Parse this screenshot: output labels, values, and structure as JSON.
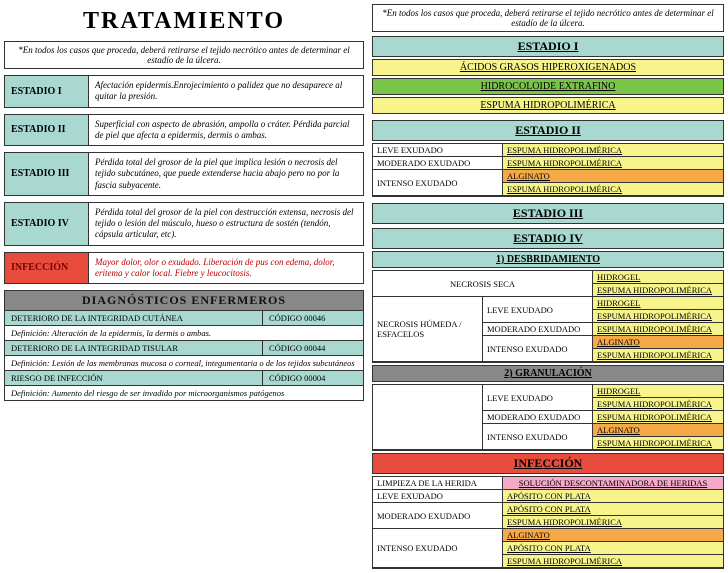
{
  "left": {
    "title": "TRATAMIENTO",
    "note": "*En todos los casos que proceda, deberá retirarse el tejido necrótico antes de determinar el estadío de la úlcera.",
    "stages": [
      {
        "label": "ESTADIO I",
        "desc": "Afectación epidermis.Enrojecimiento o palidez que no desaparece al quitar la presión.",
        "red": false
      },
      {
        "label": "ESTADIO II",
        "desc": "Superficial con aspecto de abrasión, ampolla o cráter. Pérdida parcial de piel que afecta a epidermis, dermis o ambas.",
        "red": false
      },
      {
        "label": "ESTADIO III",
        "desc": "Pérdida total del grosor de la piel que implica lesión o necrosis del tejido subcutáneo, que puede extenderse hacia abajo pero no por la fascia subyacente.",
        "red": false
      },
      {
        "label": "ESTADIO IV",
        "desc": "Pérdida total del grosor de la piel con destrucción extensa, necrosis del tejido o lesión del músculo, hueso o estructura de sostén (tendón, cápsula articular, etc).",
        "red": false
      },
      {
        "label": "INFECCIÓN",
        "desc": "Mayor dolor, olor o exudado. Liberación de pus con edema, dolor, eritema y calor local. Fiebre y leucocitosis.",
        "red": true
      }
    ],
    "diagHeader": "DIAGNÓSTICOS ENFERMEROS",
    "diag": [
      {
        "name": "DETERIORO DE LA INTEGRIDAD CUTÁNEA",
        "code": "CÓDIGO 00046",
        "def": "Definición: Alteración de la epidermis, la dermis o ambas."
      },
      {
        "name": "DETERIORO DE LA INTEGRIDAD TISULAR",
        "code": "CÓDIGO 00044",
        "def": "Definición: Lesión de las membranas mucosa o corneal, integumentaria o de los tejidos subcutáneos"
      },
      {
        "name": "RIESGO DE INFECCIÓN",
        "code": "CÓDIGO 00004",
        "def": "Definición: Aumento del riesgo de ser invadido por microorganismos patógenos"
      }
    ]
  },
  "right": {
    "note": "*En todos los casos que proceda, deberá retirarse el tejido necrótico antes de determinar el estadío de la úlcera.",
    "e1": {
      "header": "ESTADIO I",
      "r1": "ÁCIDOS GRASOS HIPEROXIGENADOS",
      "r2": "HIDROCOLOIDE EXTRAFINO",
      "r3": "ESPUMA HIDROPOLIMÉRICA"
    },
    "e2": {
      "header": "ESTADIO II",
      "rows": [
        {
          "l": "LEVE EXUDADO",
          "r": [
            "ESPUMA HIDROPOLIMÉRICA"
          ],
          "cls": [
            "yellow"
          ]
        },
        {
          "l": "MODERADO EXUDADO",
          "r": [
            "ESPUMA HIDROPOLIMÉRICA"
          ],
          "cls": [
            "yellow"
          ]
        },
        {
          "l": "INTENSO EXUDADO",
          "r": [
            "ALGINATO",
            "ESPUMA HIDROPOLIMÉRICA"
          ],
          "cls": [
            "orange",
            "yellow"
          ]
        }
      ]
    },
    "e3": "ESTADIO III",
    "e4": "ESTADIO IV",
    "desb": {
      "header": "1)  DESBRIDAMIENTO",
      "seca": {
        "l": "NECROSIS SECA",
        "r": [
          "HIDROGEL",
          "ESPUMA HIDROPOLIMÉRICA"
        ],
        "cls": [
          "yellow",
          "yellow"
        ]
      },
      "humeda": {
        "l": "NECROSIS HÚMEDA / ESFACELOS",
        "rows": [
          {
            "l": "LEVE EXUDADO",
            "r": [
              "HIDROGEL",
              "ESPUMA HIDROPOLIMÉRICA"
            ],
            "cls": [
              "yellow",
              "yellow"
            ]
          },
          {
            "l": "MODERADO EXUDADO",
            "r": [
              "ESPUMA HIDROPOLIMÉRICA"
            ],
            "cls": [
              "yellow"
            ]
          },
          {
            "l": "INTENSO EXUDADO",
            "r": [
              "ALGINATO",
              "ESPUMA HIDROPOLIMÉRICA"
            ],
            "cls": [
              "orange",
              "yellow"
            ]
          }
        ]
      }
    },
    "gran": {
      "header": "2)  GRANULACIÓN",
      "rows": [
        {
          "l": "LEVE EXUDADO",
          "r": [
            "HIDROGEL",
            "ESPUMA HIDROPOLIMÉRICA"
          ],
          "cls": [
            "yellow",
            "yellow"
          ]
        },
        {
          "l": "MODERADO EXUDADO",
          "r": [
            "ESPUMA HIDROPOLIMÉRICA"
          ],
          "cls": [
            "yellow"
          ]
        },
        {
          "l": "INTENSO EXUDADO",
          "r": [
            "ALGINATO",
            "ESPUMA HIDROPOLIMÉRICA"
          ],
          "cls": [
            "orange",
            "yellow"
          ]
        }
      ]
    },
    "inf": {
      "header": "INFECCIÓN",
      "wash": {
        "l": "LIMPIEZA DE LA HERIDA",
        "r": "SOLUCIÓN DESCONTAMINADORA DE HERIDAS"
      },
      "rows": [
        {
          "l": "LEVE EXUDADO",
          "r": [
            "APÓSITO CON PLATA"
          ],
          "cls": [
            "yellow"
          ]
        },
        {
          "l": "MODERADO EXUDADO",
          "r": [
            "APÓSITO CON PLATA",
            "ESPUMA HIDROPOLIMÉRICA"
          ],
          "cls": [
            "yellow",
            "yellow"
          ]
        },
        {
          "l": "INTENSO EXUDADO",
          "r": [
            "ALGINATO",
            "APÓSITO CON PLATA",
            "ESPUMA HIDROPOLIMÉRICA"
          ],
          "cls": [
            "orange",
            "yellow",
            "yellow"
          ]
        }
      ]
    }
  },
  "colors": {
    "cyan": "#a8d8d0",
    "yellow": "#f7f48b",
    "green": "#7bc44a",
    "orange": "#f5a947",
    "red": "#e84c3d",
    "pink": "#f4a9c9",
    "gray": "#888"
  }
}
